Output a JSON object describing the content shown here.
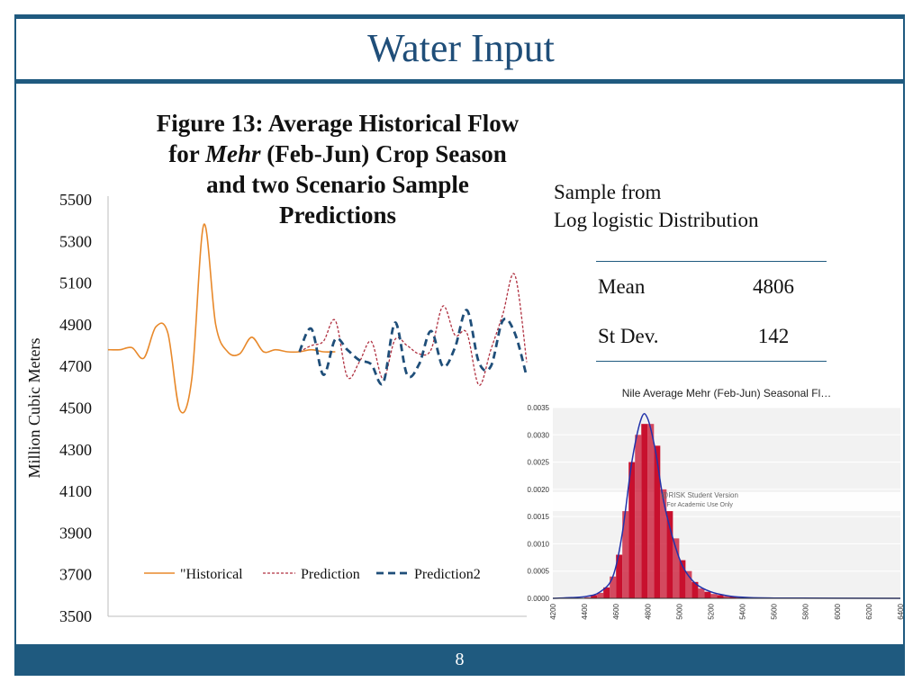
{
  "slide": {
    "title": "Water Input",
    "page_number": "8"
  },
  "figure": {
    "title_line1": "Figure 13: Average Historical Flow",
    "title_line2_prefix": "for ",
    "title_line2_em": "Mehr",
    "title_line2_suffix": " (Feb-Jun) Crop Season",
    "title_line3": "and two Scenario Sample",
    "title_line4": "Predictions"
  },
  "distribution": {
    "line1": "Sample from",
    "line2": "Log logistic Distribution"
  },
  "stats": [
    {
      "label": "Mean",
      "value": "4806"
    },
    {
      "label": "St Dev.",
      "value": "142"
    }
  ],
  "chart_data": [
    {
      "type": "line",
      "ylabel": "Million Cubic Meters",
      "ylim": [
        3500,
        5500
      ],
      "yticks": [
        "5500",
        "5300",
        "5100",
        "4900",
        "4700",
        "4500",
        "4300",
        "4100",
        "3900",
        "3700",
        "3500"
      ],
      "legend_position": "bottom",
      "colors": {
        "Historical": "#e8892b",
        "Prediction": "#b03040",
        "Prediction2": "#1f4e79"
      },
      "series": [
        {
          "name": "\"Historical",
          "x": [
            0,
            1,
            2,
            3,
            4,
            5,
            6,
            7,
            8,
            9,
            10,
            11,
            12,
            13,
            14,
            15,
            16,
            17,
            18,
            19
          ],
          "values": [
            4780,
            4780,
            4790,
            4740,
            4890,
            4860,
            4490,
            4640,
            5380,
            4900,
            4770,
            4760,
            4840,
            4770,
            4780,
            4770,
            4770,
            4780,
            4770,
            4770
          ]
        },
        {
          "name": "Prediction",
          "x": [
            16,
            17,
            18,
            19,
            20,
            21,
            22,
            23,
            24,
            25,
            26,
            27,
            28,
            29,
            30,
            31,
            32,
            33,
            34,
            35
          ],
          "values": [
            4770,
            4800,
            4820,
            4920,
            4650,
            4720,
            4820,
            4640,
            4830,
            4800,
            4760,
            4780,
            4990,
            4850,
            4860,
            4610,
            4780,
            4950,
            5140,
            4720
          ]
        },
        {
          "name": "Prediction2",
          "x": [
            16,
            17,
            18,
            19,
            20,
            21,
            22,
            23,
            24,
            25,
            26,
            27,
            28,
            29,
            30,
            31,
            32,
            33,
            34,
            35
          ],
          "values": [
            4770,
            4880,
            4660,
            4830,
            4780,
            4730,
            4710,
            4620,
            4910,
            4660,
            4710,
            4870,
            4700,
            4790,
            4970,
            4720,
            4700,
            4920,
            4860,
            4650
          ]
        }
      ]
    },
    {
      "type": "bar",
      "title": "Nile Average Mehr (Feb-Jun) Seasonal Fl…",
      "watermark_line1": "@RISK Student Version",
      "watermark_line2": "For Academic Use Only",
      "xlim": [
        4200,
        6400
      ],
      "ylim": [
        0,
        0.0035
      ],
      "xticks": [
        "4200",
        "4400",
        "4600",
        "4800",
        "5000",
        "5200",
        "5400",
        "5600",
        "5800",
        "6000",
        "6200",
        "6400"
      ],
      "yticks": [
        "0.0035",
        "0.0030",
        "0.0025",
        "0.0020",
        "0.0015",
        "0.0010",
        "0.0005",
        "0.0000"
      ],
      "bar_color": "#c8102e",
      "curve_color": "#2233aa",
      "bin_width": 40,
      "bins_start": [
        4400,
        4440,
        4480,
        4520,
        4560,
        4600,
        4640,
        4680,
        4720,
        4760,
        4800,
        4840,
        4880,
        4920,
        4960,
        5000,
        5040,
        5080,
        5120,
        5160,
        5200,
        5240,
        5280,
        5320,
        5360,
        5400,
        5440,
        5480,
        5520
      ],
      "density": [
        2e-05,
        6e-05,
        0.0001,
        0.0002,
        0.0004,
        0.0008,
        0.0016,
        0.0025,
        0.003,
        0.0032,
        0.0032,
        0.0028,
        0.002,
        0.0016,
        0.0011,
        0.0007,
        0.0005,
        0.0003,
        0.00018,
        0.00012,
        8e-05,
        6e-05,
        4e-05,
        3e-05,
        2e-05,
        2e-05,
        1e-05,
        1e-05,
        1e-05
      ],
      "curve": [
        [
          4200,
          0
        ],
        [
          4400,
          3e-05
        ],
        [
          4500,
          0.00012
        ],
        [
          4580,
          0.0004
        ],
        [
          4640,
          0.0012
        ],
        [
          4700,
          0.0025
        ],
        [
          4760,
          0.0033
        ],
        [
          4800,
          0.0033
        ],
        [
          4850,
          0.0027
        ],
        [
          4900,
          0.0018
        ],
        [
          4960,
          0.0011
        ],
        [
          5020,
          0.0006
        ],
        [
          5100,
          0.00028
        ],
        [
          5200,
          0.00012
        ],
        [
          5300,
          5e-05
        ],
        [
          5400,
          2e-05
        ],
        [
          5600,
          5e-06
        ],
        [
          6400,
          0
        ]
      ]
    }
  ]
}
